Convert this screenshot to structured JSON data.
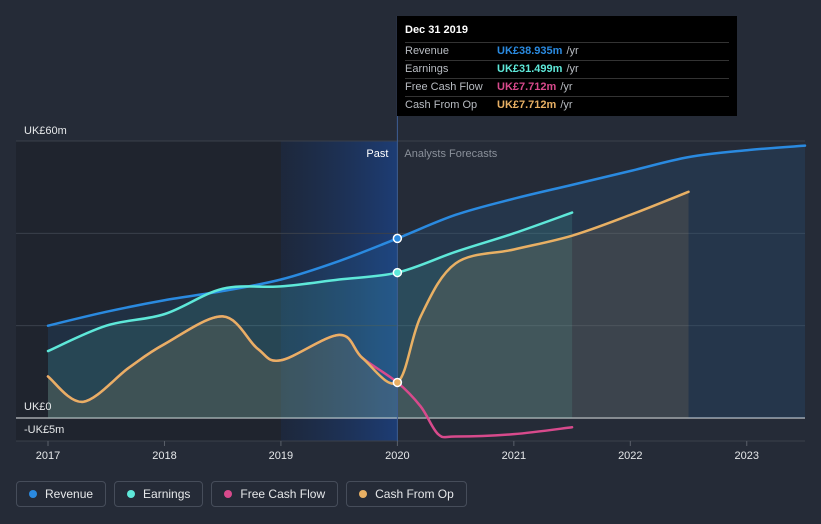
{
  "chart_data": {
    "type": "line",
    "y_axis": {
      "top_label": "UK£60m",
      "zero_label": "UK£0",
      "bottom_label": "-UK£5m",
      "ylim": [
        -5,
        60
      ]
    },
    "x_ticks": [
      "2017",
      "2018",
      "2019",
      "2020",
      "2021",
      "2022",
      "2023"
    ],
    "x_range": [
      2017,
      2023.5
    ],
    "past_label": "Past",
    "forecast_label": "Analysts Forecasts",
    "divider_x": 2020,
    "highlight_start": 2019,
    "series": [
      {
        "name": "Revenue",
        "color": "#2a8ae0",
        "points": [
          [
            2017,
            20
          ],
          [
            2017.5,
            23
          ],
          [
            2018,
            25.5
          ],
          [
            2018.5,
            27.5
          ],
          [
            2019,
            30
          ],
          [
            2019.5,
            34
          ],
          [
            2020,
            38.9
          ],
          [
            2020.5,
            44
          ],
          [
            2021,
            47.5
          ],
          [
            2021.5,
            50.5
          ],
          [
            2022,
            53.5
          ],
          [
            2022.5,
            56.5
          ],
          [
            2023,
            58
          ],
          [
            2023.5,
            59
          ]
        ]
      },
      {
        "name": "Earnings",
        "color": "#5ee8d9",
        "points": [
          [
            2017,
            14.5
          ],
          [
            2017.5,
            20
          ],
          [
            2018,
            22.5
          ],
          [
            2018.5,
            28
          ],
          [
            2019,
            28.5
          ],
          [
            2019.5,
            30
          ],
          [
            2020,
            31.5
          ],
          [
            2020.5,
            36
          ],
          [
            2021,
            40
          ],
          [
            2021.5,
            44.5
          ]
        ]
      },
      {
        "name": "Free Cash Flow",
        "color": "#d84a8c",
        "points": [
          [
            2017,
            9
          ],
          [
            2017.3,
            3.5
          ],
          [
            2017.7,
            11
          ],
          [
            2018,
            16
          ],
          [
            2018.5,
            22
          ],
          [
            2018.8,
            15
          ],
          [
            2019,
            12.5
          ],
          [
            2019.5,
            18
          ],
          [
            2019.7,
            13
          ],
          [
            2020,
            7.7
          ],
          [
            2020.2,
            2.5
          ],
          [
            2020.35,
            -3.5
          ],
          [
            2020.5,
            -4
          ],
          [
            2021,
            -3.5
          ],
          [
            2021.5,
            -2
          ]
        ]
      },
      {
        "name": "Cash From Op",
        "color": "#e8b064",
        "points": [
          [
            2017,
            9
          ],
          [
            2017.3,
            3.5
          ],
          [
            2017.7,
            11
          ],
          [
            2018,
            16
          ],
          [
            2018.5,
            22
          ],
          [
            2018.8,
            15
          ],
          [
            2019,
            12.5
          ],
          [
            2019.5,
            18
          ],
          [
            2019.7,
            13
          ],
          [
            2020,
            7.7
          ],
          [
            2020.2,
            22
          ],
          [
            2020.5,
            33.5
          ],
          [
            2021,
            36.5
          ],
          [
            2021.5,
            39.5
          ],
          [
            2022,
            44
          ],
          [
            2022.5,
            49
          ]
        ]
      }
    ],
    "tooltip": {
      "date": "Dec 31 2019",
      "rows": [
        {
          "label": "Revenue",
          "value": "UK£38.935m",
          "unit": "/yr",
          "color": "#2a8ae0"
        },
        {
          "label": "Earnings",
          "value": "UK£31.499m",
          "unit": "/yr",
          "color": "#5ee8d9"
        },
        {
          "label": "Free Cash Flow",
          "value": "UK£7.712m",
          "unit": "/yr",
          "color": "#d84a8c"
        },
        {
          "label": "Cash From Op",
          "value": "UK£7.712m",
          "unit": "/yr",
          "color": "#e8b064"
        }
      ]
    }
  },
  "legend": [
    {
      "label": "Revenue",
      "color": "#2a8ae0"
    },
    {
      "label": "Earnings",
      "color": "#5ee8d9"
    },
    {
      "label": "Free Cash Flow",
      "color": "#d84a8c"
    },
    {
      "label": "Cash From Op",
      "color": "#e8b064"
    }
  ]
}
